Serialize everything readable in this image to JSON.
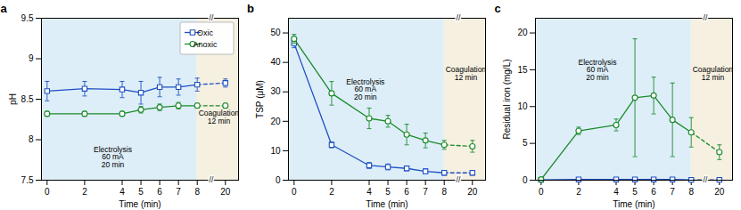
{
  "chart_data": [
    {
      "type": "line",
      "title": "a",
      "x_label": "Time (min)",
      "y_label": "pH",
      "x": [
        0,
        2,
        4,
        5,
        6,
        7,
        8,
        20
      ],
      "xlim": [
        -0.3,
        20.7
      ],
      "xticks": [
        0,
        2,
        4,
        5,
        6,
        7,
        8,
        20
      ],
      "x_break": [
        8,
        20
      ],
      "ylim": [
        7.5,
        9.5
      ],
      "yticks": [
        7.5,
        8,
        8.5,
        9,
        9.5
      ],
      "grid": false,
      "legend": "upper right",
      "series": [
        {
          "name": "Oxic",
          "color": "#1e4fc2",
          "marker": "square",
          "values": [
            8.6,
            8.63,
            8.62,
            8.58,
            8.65,
            8.65,
            8.68,
            8.7
          ],
          "errors": [
            0.12,
            0.09,
            0.1,
            0.14,
            0.12,
            0.1,
            0.08,
            0.05
          ]
        },
        {
          "name": "Anoxic",
          "color": "#1a8a2a",
          "marker": "circle",
          "values": [
            8.32,
            8.32,
            8.32,
            8.37,
            8.4,
            8.42,
            8.42,
            8.42
          ],
          "errors": [
            0.03,
            0.03,
            0.03,
            0.04,
            0.04,
            0.04,
            0.03,
            0.03
          ]
        }
      ],
      "shaded_regions": [
        {
          "x": [
            -0.3,
            8
          ],
          "color": "#ddeef8"
        },
        {
          "x": [
            8,
            20.7
          ],
          "color": "#f5f0e0"
        }
      ],
      "annotations": [
        {
          "text": "Electrolysis\n60 mA\n20 min",
          "x": 3.5,
          "y": 7.66
        },
        {
          "text": "Coagulation\n12 min",
          "x": 17.2,
          "y": 8.2
        },
        {
          "text": "//",
          "x": 14,
          "y": 9.5
        },
        {
          "text": "//",
          "x": 14,
          "y": 7.5
        }
      ]
    },
    {
      "type": "line",
      "title": "b",
      "x_label": "Time (min)",
      "y_label": "TSP (μM)",
      "x": [
        0,
        2,
        4,
        5,
        6,
        7,
        8,
        20
      ],
      "xlim": [
        -0.3,
        20.7
      ],
      "xticks": [
        0,
        2,
        4,
        5,
        6,
        7,
        8,
        20
      ],
      "x_break": [
        8,
        20
      ],
      "ylim": [
        0,
        55
      ],
      "yticks": [
        0,
        10,
        20,
        30,
        40,
        50
      ],
      "grid": false,
      "series": [
        {
          "color": "#1e4fc2",
          "marker": "square",
          "values": [
            46.5,
            12.0,
            5.0,
            4.5,
            4.0,
            3.0,
            2.5,
            2.5
          ],
          "errors": [
            1.5,
            1.0,
            1.0,
            1.0,
            0.8,
            0.8,
            0.8,
            0.8
          ]
        },
        {
          "color": "#1a8a2a",
          "marker": "circle",
          "values": [
            48.0,
            29.5,
            21.0,
            20.0,
            15.5,
            13.5,
            12.0,
            11.5
          ],
          "errors": [
            1.5,
            4.0,
            3.5,
            2.0,
            3.5,
            2.5,
            1.5,
            2.0
          ]
        }
      ],
      "shaded_regions": [
        {
          "x": [
            -0.3,
            8
          ],
          "color": "#ddeef8"
        },
        {
          "x": [
            8,
            20.7
          ],
          "color": "#f5f0e0"
        }
      ],
      "annotations": [
        {
          "text": "Electrolysis\n60 mA\n20 min",
          "x": 3.8,
          "y": 27.5
        },
        {
          "text": "Coagulation\n12 min",
          "x": 17.2,
          "y": 34.1
        },
        {
          "text": "//",
          "x": 14,
          "y": 55
        },
        {
          "text": "//",
          "x": 14,
          "y": 0
        }
      ]
    },
    {
      "type": "line",
      "title": "c",
      "x_label": "Time (min)",
      "y_label": "Residual iron (mg/L)",
      "x": [
        0,
        2,
        4,
        5,
        6,
        7,
        8,
        20
      ],
      "xlim": [
        -0.3,
        20.7
      ],
      "xticks": [
        0,
        2,
        4,
        5,
        6,
        7,
        8,
        20
      ],
      "x_break": [
        8,
        20
      ],
      "ylim": [
        0,
        22
      ],
      "yticks": [
        0,
        5,
        10,
        15,
        20
      ],
      "grid": false,
      "series": [
        {
          "color": "#1e4fc2",
          "marker": "square",
          "values": [
            0.05,
            0.1,
            0.1,
            0.1,
            0.1,
            0.1,
            0.05,
            0.05
          ],
          "errors": [
            0.05,
            0.05,
            0.05,
            0.05,
            0.1,
            0.1,
            0.05,
            0.05
          ]
        },
        {
          "color": "#1a8a2a",
          "marker": "circle",
          "values": [
            0.1,
            6.7,
            7.5,
            11.2,
            11.5,
            8.2,
            6.5,
            3.8
          ],
          "errors": [
            0.1,
            0.5,
            0.8,
            8.0,
            2.5,
            5.0,
            2.0,
            1.0
          ]
        }
      ],
      "shaded_regions": [
        {
          "x": [
            -0.3,
            8
          ],
          "color": "#ddeef8"
        },
        {
          "x": [
            8,
            20.7
          ],
          "color": "#f5f0e0"
        }
      ],
      "annotations": [
        {
          "text": "Electrolysis\n60 mA\n20 min",
          "x": 3.0,
          "y": 13.64
        },
        {
          "text": "Coagulation\n12 min",
          "x": 17.2,
          "y": 13.64
        },
        {
          "text": "//",
          "x": 14,
          "y": 22
        },
        {
          "text": "//",
          "x": 14,
          "y": 0
        }
      ]
    }
  ]
}
